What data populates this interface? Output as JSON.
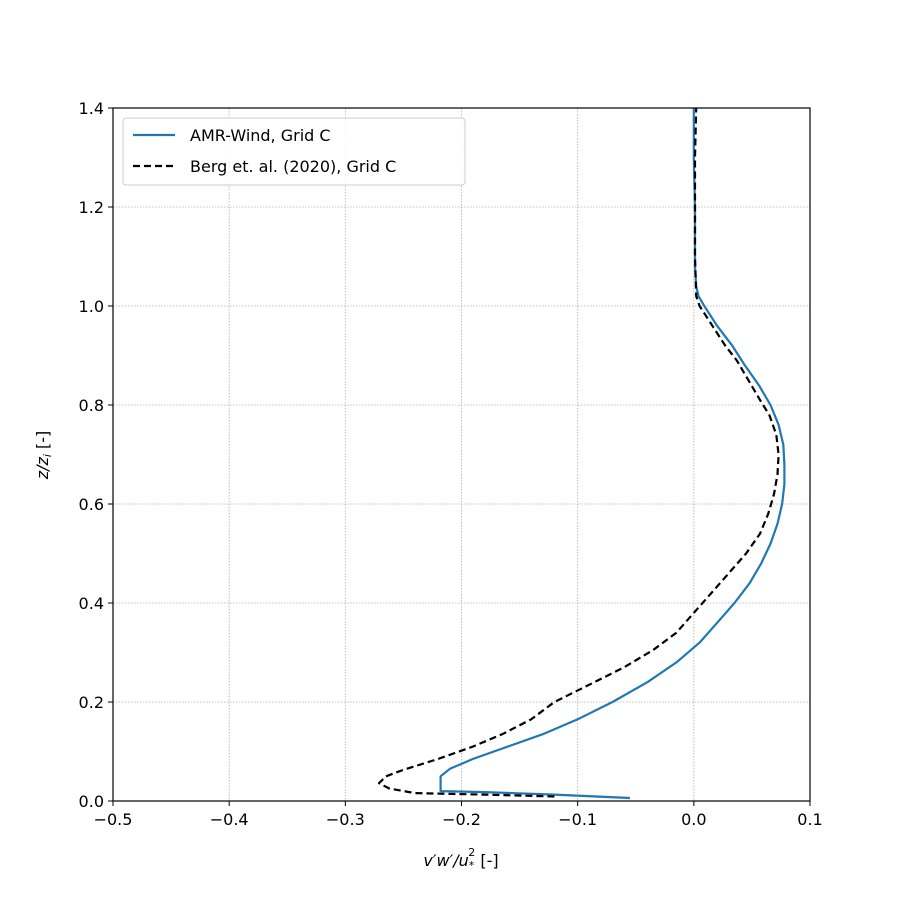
{
  "chart_data": {
    "type": "line",
    "title": "",
    "xlabel_main": "v′w′/u",
    "xlabel_sub": "*",
    "xlabel_sup": "2",
    "xlabel_unit": " [-]",
    "ylabel_main": "z/z",
    "ylabel_sub": "i",
    "ylabel_unit": " [-]",
    "xlim": [
      -0.5,
      0.1
    ],
    "ylim": [
      0.0,
      1.4
    ],
    "grid": true,
    "legend_position": "upper-left",
    "xticks": [
      -0.5,
      -0.4,
      -0.3,
      -0.2,
      -0.1,
      0.0,
      0.1
    ],
    "xtick_labels": [
      "−0.5",
      "−0.4",
      "−0.3",
      "−0.2",
      "−0.1",
      "0.0",
      "0.1"
    ],
    "yticks": [
      0.0,
      0.2,
      0.4,
      0.6,
      0.8,
      1.0,
      1.2,
      1.4
    ],
    "ytick_labels": [
      "0.0",
      "0.2",
      "0.4",
      "0.6",
      "0.8",
      "1.0",
      "1.2",
      "1.4"
    ],
    "series": [
      {
        "name": "AMR-Wind, Grid C",
        "color": "#1f77b4",
        "style": "solid",
        "points": [
          [
            -0.055,
            0.006
          ],
          [
            -0.12,
            0.013
          ],
          [
            -0.18,
            0.018
          ],
          [
            -0.218,
            0.02
          ],
          [
            -0.218,
            0.05
          ],
          [
            -0.21,
            0.065
          ],
          [
            -0.19,
            0.085
          ],
          [
            -0.16,
            0.11
          ],
          [
            -0.13,
            0.135
          ],
          [
            -0.1,
            0.165
          ],
          [
            -0.07,
            0.2
          ],
          [
            -0.04,
            0.24
          ],
          [
            -0.015,
            0.28
          ],
          [
            0.005,
            0.32
          ],
          [
            0.02,
            0.36
          ],
          [
            0.035,
            0.4
          ],
          [
            0.048,
            0.44
          ],
          [
            0.058,
            0.48
          ],
          [
            0.066,
            0.52
          ],
          [
            0.072,
            0.56
          ],
          [
            0.076,
            0.6
          ],
          [
            0.078,
            0.64
          ],
          [
            0.078,
            0.68
          ],
          [
            0.077,
            0.72
          ],
          [
            0.073,
            0.76
          ],
          [
            0.066,
            0.8
          ],
          [
            0.056,
            0.84
          ],
          [
            0.044,
            0.88
          ],
          [
            0.033,
            0.92
          ],
          [
            0.02,
            0.96
          ],
          [
            0.009,
            1.0
          ],
          [
            0.004,
            1.02
          ],
          [
            0.002,
            1.04
          ],
          [
            0.001,
            1.08
          ],
          [
            0.001,
            1.2
          ],
          [
            0.0,
            1.3
          ],
          [
            0.0,
            1.4
          ]
        ]
      },
      {
        "name": "Berg et. al. (2020), Grid C",
        "color": "#000000",
        "style": "dashed",
        "points": [
          [
            -0.12,
            0.009
          ],
          [
            -0.18,
            0.013
          ],
          [
            -0.24,
            0.016
          ],
          [
            -0.262,
            0.025
          ],
          [
            -0.271,
            0.036
          ],
          [
            -0.265,
            0.05
          ],
          [
            -0.25,
            0.063
          ],
          [
            -0.22,
            0.085
          ],
          [
            -0.19,
            0.11
          ],
          [
            -0.165,
            0.135
          ],
          [
            -0.14,
            0.165
          ],
          [
            -0.12,
            0.2
          ],
          [
            -0.09,
            0.235
          ],
          [
            -0.06,
            0.27
          ],
          [
            -0.035,
            0.305
          ],
          [
            -0.015,
            0.34
          ],
          [
            0.0,
            0.38
          ],
          [
            0.015,
            0.42
          ],
          [
            0.03,
            0.46
          ],
          [
            0.045,
            0.5
          ],
          [
            0.057,
            0.54
          ],
          [
            0.064,
            0.58
          ],
          [
            0.069,
            0.62
          ],
          [
            0.072,
            0.66
          ],
          [
            0.073,
            0.7
          ],
          [
            0.071,
            0.74
          ],
          [
            0.065,
            0.78
          ],
          [
            0.057,
            0.81
          ],
          [
            0.047,
            0.85
          ],
          [
            0.037,
            0.89
          ],
          [
            0.027,
            0.92
          ],
          [
            0.016,
            0.96
          ],
          [
            0.005,
            1.0
          ],
          [
            0.002,
            1.02
          ],
          [
            0.001,
            1.1
          ],
          [
            0.001,
            1.2
          ],
          [
            0.001,
            1.3
          ],
          [
            0.002,
            1.4
          ]
        ]
      }
    ]
  }
}
